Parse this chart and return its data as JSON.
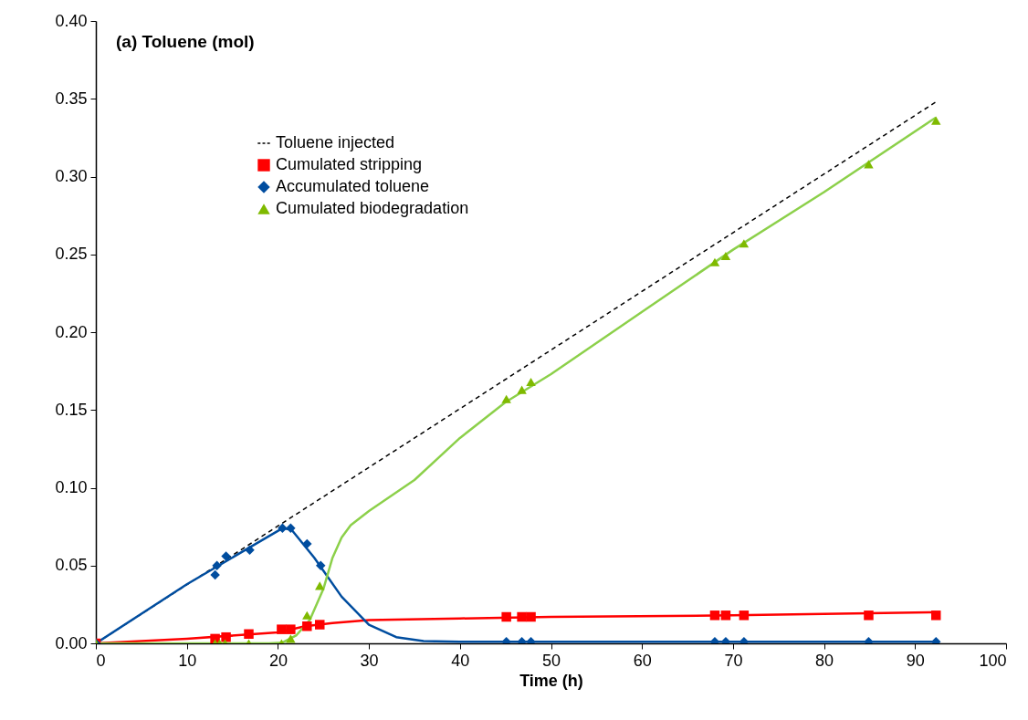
{
  "chart_data": {
    "type": "scatter",
    "title": "(a) Toluene (mol)",
    "xlabel": "Time (h)",
    "xlim": [
      0,
      100
    ],
    "xticks": [
      0,
      10,
      20,
      30,
      40,
      50,
      60,
      70,
      80,
      90,
      100
    ],
    "ylim": [
      0,
      0.4
    ],
    "yticks": [
      {
        "value": 0,
        "label": "0.00"
      },
      {
        "value": 0.05,
        "label": "0.05"
      },
      {
        "value": 0.1,
        "label": "0.10"
      },
      {
        "value": 0.15,
        "label": "0.15"
      },
      {
        "value": 0.2,
        "label": "0.20"
      },
      {
        "value": 0.25,
        "label": "0.25"
      },
      {
        "value": 0.3,
        "label": "0.30"
      },
      {
        "value": 0.35,
        "label": "0.35"
      },
      {
        "value": 0.4,
        "label": "0.40"
      }
    ],
    "grid": false,
    "legend": "top left",
    "series": [
      {
        "name": "Toluene injected",
        "type": "line",
        "color": "#000000",
        "line_style": "dashed",
        "x": [
          0,
          92.3
        ],
        "values": [
          0,
          0.348
        ]
      },
      {
        "name": "Cumulated stripping",
        "color": "#ff0000",
        "marker": "square",
        "x": [
          0,
          13.1,
          14.3,
          16.8,
          20.4,
          21.4,
          23.2,
          24.6,
          45.1,
          46.8,
          47.8,
          68.0,
          69.2,
          71.2,
          84.9,
          92.3
        ],
        "values": [
          0,
          0.003,
          0.004,
          0.006,
          0.009,
          0.009,
          0.011,
          0.012,
          0.017,
          0.017,
          0.017,
          0.018,
          0.018,
          0.018,
          0.018,
          0.018
        ]
      },
      {
        "name": "Accumulated toluene",
        "color": "#004d9f",
        "marker": "diamond",
        "x": [
          0,
          13.1,
          13.3,
          14.3,
          16.9,
          20.5,
          21.4,
          23.2,
          24.7,
          45.1,
          46.8,
          47.8,
          68.0,
          69.2,
          71.2,
          84.9,
          92.3
        ],
        "values": [
          0,
          0.044,
          0.05,
          0.056,
          0.06,
          0.074,
          0.074,
          0.064,
          0.05,
          0.001,
          0.001,
          0.001,
          0.001,
          0.001,
          0.001,
          0.001,
          0.001
        ]
      },
      {
        "name": "Cumulated biodegradation",
        "color": "#7fba00",
        "marker": "triangle",
        "x": [
          0,
          13.1,
          13.6,
          14.2,
          16.8,
          20.4,
          21.4,
          23.2,
          24.6,
          45.1,
          46.8,
          47.8,
          68.0,
          69.2,
          71.2,
          84.9,
          92.3
        ],
        "values": [
          0,
          0,
          0,
          0,
          0,
          0,
          0.003,
          0.018,
          0.037,
          0.157,
          0.163,
          0.168,
          0.245,
          0.249,
          0.257,
          0.308,
          0.336
        ]
      },
      {
        "type": "line",
        "color": "#ff0000",
        "line_style": "solid",
        "x": [
          0,
          10,
          20,
          23,
          26,
          30,
          40,
          50,
          70,
          92.3
        ],
        "values": [
          0,
          0.003,
          0.007,
          0.011,
          0.013,
          0.015,
          0.016,
          0.017,
          0.018,
          0.02
        ]
      },
      {
        "type": "line",
        "color": "#004d9f",
        "line_style": "solid",
        "x": [
          0,
          10,
          20.5,
          21.5,
          24,
          27,
          30,
          33,
          36,
          40,
          60,
          92.3
        ],
        "values": [
          0,
          0.038,
          0.074,
          0.073,
          0.055,
          0.03,
          0.012,
          0.004,
          0.0015,
          0.001,
          0.001,
          0.001
        ]
      },
      {
        "type": "line",
        "color": "#8cd04a",
        "line_style": "solid",
        "x": [
          0,
          19,
          20.5,
          22,
          23.5,
          25,
          26,
          27,
          28,
          30,
          35,
          40,
          45,
          50,
          60,
          70,
          80,
          92.3
        ],
        "values": [
          0,
          0,
          0.0005,
          0.005,
          0.015,
          0.035,
          0.055,
          0.068,
          0.076,
          0.085,
          0.105,
          0.132,
          0.155,
          0.173,
          0.213,
          0.253,
          0.29,
          0.338
        ]
      }
    ]
  }
}
